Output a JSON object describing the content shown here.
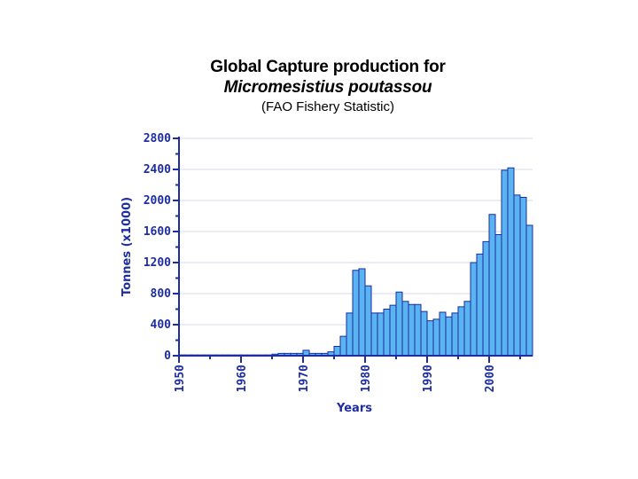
{
  "title": {
    "line1": "Global Capture production for",
    "line2": "Micromesistius poutassou",
    "line3": "(FAO Fishery Statistic)"
  },
  "colors": {
    "bar_fill": "#5ab4f2",
    "bar_stroke": "#1a2d9e",
    "axis": "#1e2da0",
    "grid": "#d6dde8"
  },
  "chart_data": {
    "type": "bar",
    "title": "Global Capture production for Micromesistius poutassou (FAO Fishery Statistic)",
    "xlabel": "Years",
    "ylabel": "Tonnes (x1000)",
    "ylim": [
      0,
      2800
    ],
    "yticks": [
      0,
      400,
      800,
      1200,
      1600,
      2000,
      2400,
      2800
    ],
    "xticks": [
      1950,
      1960,
      1970,
      1980,
      1990,
      2000
    ],
    "grid": true,
    "categories": [
      1950,
      1951,
      1952,
      1953,
      1954,
      1955,
      1956,
      1957,
      1958,
      1959,
      1960,
      1961,
      1962,
      1963,
      1964,
      1965,
      1966,
      1967,
      1968,
      1969,
      1970,
      1971,
      1972,
      1973,
      1974,
      1975,
      1976,
      1977,
      1978,
      1979,
      1980,
      1981,
      1982,
      1983,
      1984,
      1985,
      1986,
      1987,
      1988,
      1989,
      1990,
      1991,
      1992,
      1993,
      1994,
      1995,
      1996,
      1997,
      1998,
      1999,
      2000,
      2001,
      2002,
      2003,
      2004,
      2005,
      2006
    ],
    "values": [
      10,
      10,
      10,
      10,
      10,
      10,
      10,
      10,
      10,
      10,
      10,
      10,
      10,
      10,
      10,
      20,
      30,
      30,
      30,
      30,
      70,
      30,
      30,
      30,
      50,
      120,
      250,
      550,
      1100,
      1120,
      900,
      550,
      550,
      600,
      650,
      820,
      700,
      660,
      660,
      570,
      450,
      470,
      560,
      500,
      550,
      630,
      700,
      1200,
      1310,
      1470,
      1820,
      1560,
      2390,
      2420,
      2070,
      2040,
      1680
    ]
  }
}
